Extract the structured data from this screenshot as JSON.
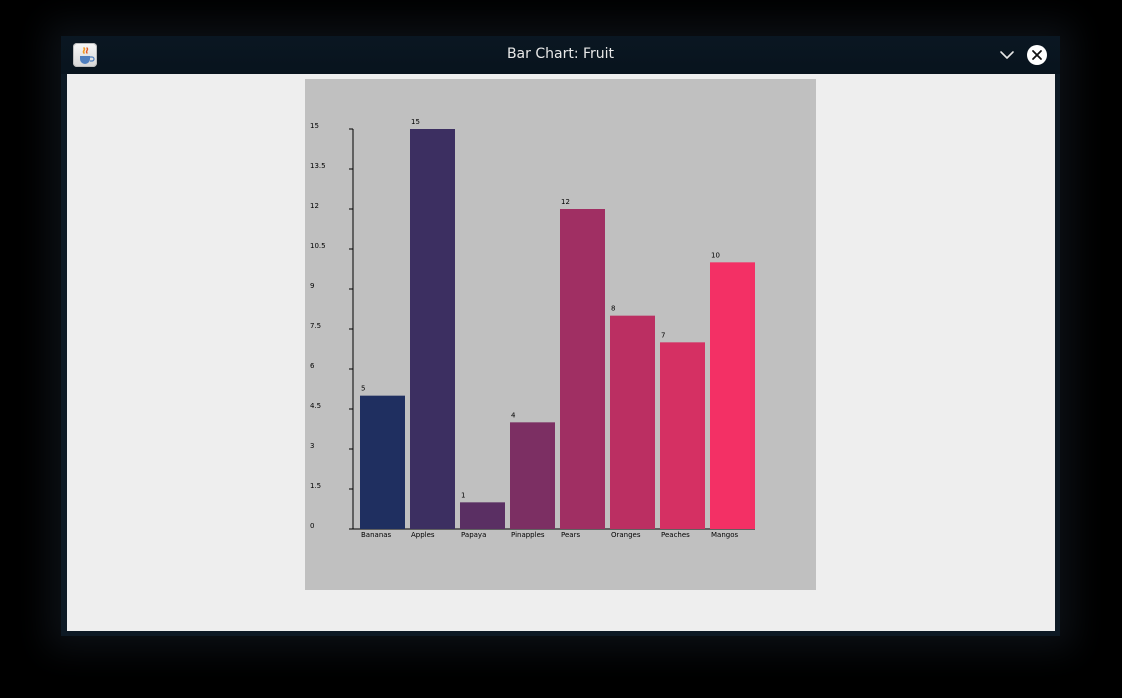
{
  "window": {
    "title": "Bar Chart: Fruit",
    "app_icon": "java-cup-icon",
    "controls": {
      "minimize_icon": "chevron-down-icon",
      "close_icon": "close-icon"
    }
  },
  "chart_data": {
    "type": "bar",
    "categories": [
      "Bananas",
      "Apples",
      "Papaya",
      "Pinapples",
      "Pears",
      "Oranges",
      "Peaches",
      "Mangos"
    ],
    "values": [
      5,
      15,
      1,
      4,
      12,
      8,
      7,
      10
    ],
    "ylim": [
      0,
      15
    ],
    "yticks": [
      "0",
      "1.5",
      "3",
      "4.5",
      "6",
      "7.5",
      "9",
      "10.5",
      "12",
      "13.5",
      "15"
    ],
    "grid": false,
    "bar_colors": [
      "#1f2f60",
      "#3c2f61",
      "#5a2f63",
      "#7c2f63",
      "#a02f63",
      "#bb2f62",
      "#d53063",
      "#f33065"
    ]
  },
  "colors": {
    "window_title_bg": "#08131d",
    "content_bg": "#eeeeee",
    "chart_bg": "#c0c0c0",
    "text": "#e8e8e8"
  }
}
